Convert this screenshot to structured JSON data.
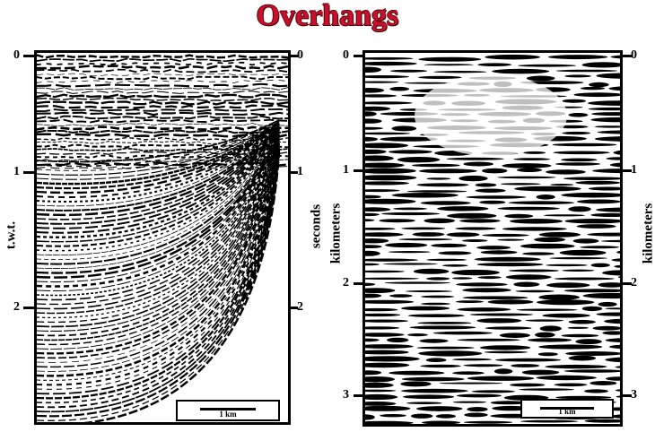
{
  "title": "Overhangs",
  "left_section": {
    "ticks": [
      "0",
      "1",
      "2"
    ],
    "ticks_right": [
      "0",
      "1",
      "2"
    ],
    "label_left": "t.w.t.",
    "label_right": "seconds",
    "scale_label": "1 km"
  },
  "right_section": {
    "ticks": [
      "0",
      "1",
      "2",
      "3"
    ],
    "ticks_right": [
      "0",
      "1",
      "2",
      "3"
    ],
    "label_left": "kilometers",
    "label_right": "kilometers",
    "scale_label": "1 km"
  },
  "colors": {
    "title": "#c8102e",
    "ink": "#000000",
    "paper": "#ffffff"
  }
}
